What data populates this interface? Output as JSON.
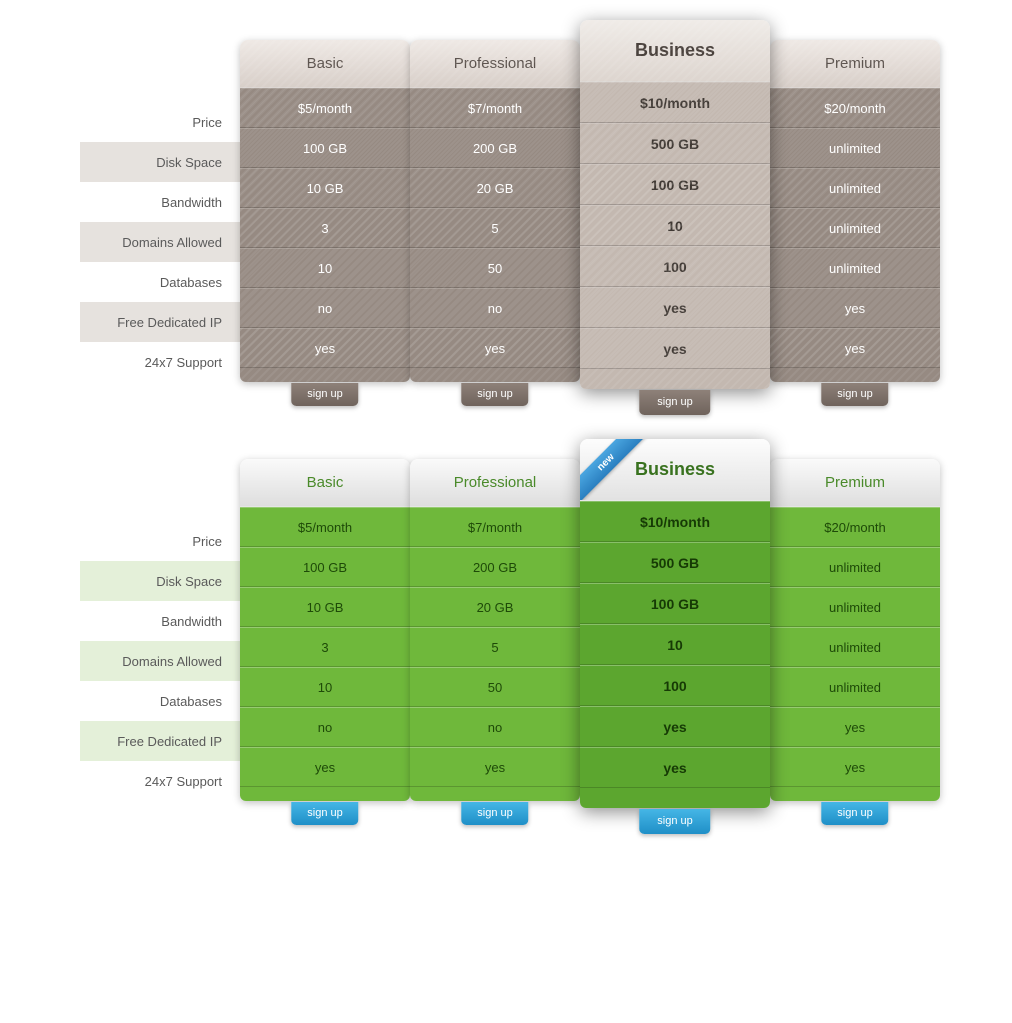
{
  "signup_label": "sign up",
  "ribbon_label": "new",
  "row_labels": [
    "Price",
    "Disk Space",
    "Bandwidth",
    "Domains Allowed",
    "Databases",
    "Free Dedicated IP",
    "24x7 Support"
  ],
  "plans": [
    {
      "name": "Basic",
      "featured": false,
      "values": [
        "$5/month",
        "100 GB",
        "10 GB",
        "3",
        "10",
        "no",
        "yes"
      ]
    },
    {
      "name": "Professional",
      "featured": false,
      "values": [
        "$7/month",
        "200 GB",
        "20 GB",
        "5",
        "50",
        "no",
        "yes"
      ]
    },
    {
      "name": "Business",
      "featured": true,
      "values": [
        "$10/month",
        "500 GB",
        "100 GB",
        "10",
        "100",
        "yes",
        "yes"
      ]
    },
    {
      "name": "Premium",
      "featured": false,
      "values": [
        "$20/month",
        "unlimited",
        "unlimited",
        "unlimited",
        "unlimited",
        "yes",
        "yes"
      ]
    }
  ],
  "themes": [
    {
      "id": "grey",
      "has_ribbon": false,
      "label_alt_bg": "#e6e2de",
      "header_bg": "linear-gradient(#efe9e5,#d8cfc9)",
      "header_color": "#5c534e",
      "featured_header_bg": "linear-gradient(#f0ece8,#ddd5cf)",
      "featured_header_color": "#4a423d",
      "cell_bg": "#968a82",
      "cell_sep_top": "rgba(255,255,255,0.18)",
      "cell_sep_bot": "rgba(0,0,0,0.18)",
      "cell_color": "#ffffff",
      "featured_cell_bg": "#c3b8b0",
      "featured_cell_color": "#3f3833",
      "footer_bg": "#968a82",
      "featured_footer_bg": "#c3b8b0",
      "signup_bg": "linear-gradient(#8e8179,#6f635c)",
      "hatch": true
    },
    {
      "id": "green",
      "has_ribbon": true,
      "label_alt_bg": "#e4f0d9",
      "header_bg": "linear-gradient(#fafafa,#dedede)",
      "header_color": "#4a8a2a",
      "featured_header_bg": "linear-gradient(#fdfdfd,#e2e2e2)",
      "featured_header_color": "#39721f",
      "cell_bg": "#6fb83b",
      "cell_sep_top": "rgba(255,255,255,0.28)",
      "cell_sep_bot": "rgba(0,0,0,0.18)",
      "cell_color": "#1e4a08",
      "featured_cell_bg": "#5ca62f",
      "featured_cell_color": "#163a05",
      "footer_bg": "#6fb83b",
      "featured_footer_bg": "#5ca62f",
      "signup_bg": "linear-gradient(#45b6e6,#1f8fc7)",
      "hatch": false
    }
  ]
}
